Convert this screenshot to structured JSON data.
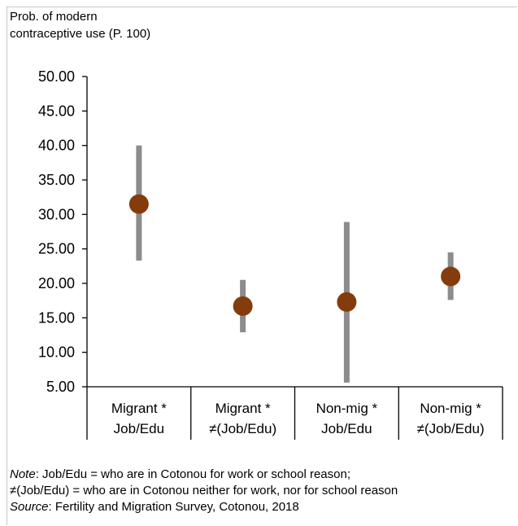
{
  "ylabel_lines": [
    "Prob. of modern",
    "contraceptive  use (P. 100)"
  ],
  "chart_data": {
    "type": "scatter",
    "subtype": "point-with-interval",
    "ylim": [
      5,
      50
    ],
    "yticks": [
      "50.00",
      "45.00",
      "40.00",
      "35.00",
      "30.00",
      "25.00",
      "20.00",
      "15.00",
      "10.00",
      "5.00"
    ],
    "categories": [
      {
        "line1": "Migrant *",
        "line2": "Job/Edu"
      },
      {
        "line1": "Migrant *",
        "line2": "≠(Job/Edu)"
      },
      {
        "line1": "Non-mig *",
        "line2": "Job/Edu"
      },
      {
        "line1": "Non-mig *",
        "line2": "≠(Job/Edu)"
      }
    ],
    "points": [
      31.5,
      16.7,
      17.3,
      21.0
    ],
    "lower": [
      23.3,
      12.9,
      5.6,
      17.6
    ],
    "upper": [
      40.0,
      20.5,
      28.9,
      24.5
    ],
    "point_color": "#843c0c",
    "interval_color": "#8c8c8c",
    "grid": false
  },
  "notes": {
    "note_label": "Note",
    "note_text": ": Job/Edu  = who are in Cotonou  for work or school  reason;",
    "note_line2": "≠(Job/Edu)  = who are in Cotonou  neither  for work, nor for school reason",
    "source_label": "Source",
    "source_text": ":  Fertility and Migration  Survey,  Cotonou,  2018"
  }
}
